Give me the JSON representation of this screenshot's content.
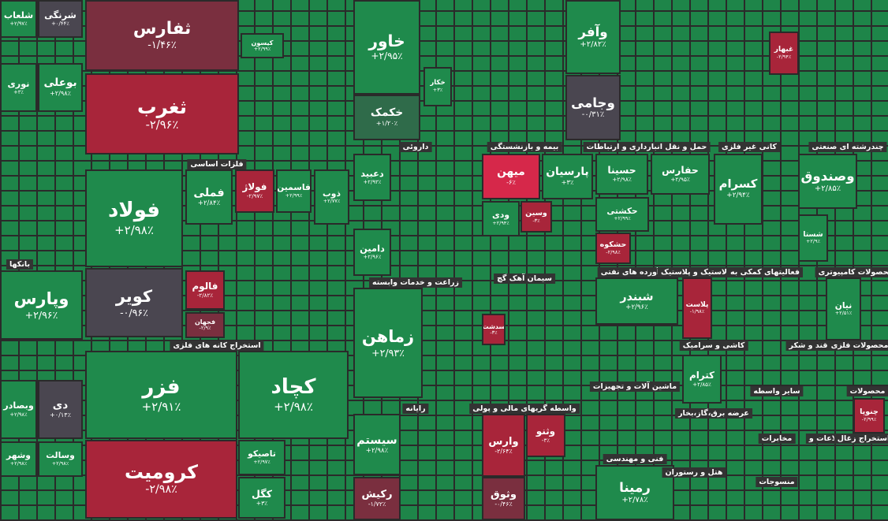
{
  "sectors": [
    "فلزات اساسی",
    "بانکها",
    "استخراج کانه های فلزی",
    "داروئی",
    "بیمه و بازنشستگی",
    "حمل و نقل انبارداری و ارتباطات",
    "کانی غیر فلزی",
    "چندرشته ای صنعتی",
    "زراعت و خدمات وابسته",
    "سیمان آهک گچ",
    "فرآورده های نفتی",
    "لاستیک و پلاستیک",
    "فعالیتهای کمکی به",
    "محصولات کامپیوتری",
    "کاشی و سرامیک",
    "قند و شکر",
    "محصولات فلزی",
    "ماشین آلات و تجهیزات",
    "رایانه",
    "واسطه گریهای مالی و پولی",
    "فنی و مهندسی",
    "عرضه برق،گاز،بخار",
    "سایر واسطه",
    "محصولات",
    "مخابرات",
    "اطلاعات و",
    "استخراج زغال",
    "هتل و رستوران",
    "منسوجات"
  ],
  "tiles": [
    {
      "name": "شلعاب",
      "change": "+۲/۹۷٪",
      "color": "#1f8a4c"
    },
    {
      "name": "شرنگی",
      "change": "+۰/۴۴٪",
      "color": "#4a4650"
    },
    {
      "name": "نوری",
      "change": "+۳٪",
      "color": "#1f8a4c"
    },
    {
      "name": "بوعلی",
      "change": "+۲/۹۸٪",
      "color": "#1f8a4c"
    },
    {
      "name": "وپارس",
      "change": "+۲/۹۶٪",
      "color": "#1f8a4c"
    },
    {
      "name": "وبصادر",
      "change": "+۲/۹۸٪",
      "color": "#1f8a4c"
    },
    {
      "name": "دی",
      "change": "+۰/۱۴٪",
      "color": "#4a4650"
    },
    {
      "name": "وشهر",
      "change": "+۲/۹۸٪",
      "color": "#1f8a4c"
    },
    {
      "name": "وسالت",
      "change": "+۲/۹۸٪",
      "color": "#1f8a4c"
    },
    {
      "name": "ثفارس",
      "change": "-۱/۴۶٪",
      "color": "#7a2f3f"
    },
    {
      "name": "ثغرب",
      "change": "-۲/۹۶٪",
      "color": "#a8253a"
    },
    {
      "name": "فولاد",
      "change": "+۲/۹۸٪",
      "color": "#1f8a4c"
    },
    {
      "name": "کویر",
      "change": "-۰/۹۶٪",
      "color": "#4a4650"
    },
    {
      "name": "فملی",
      "change": "+۲/۸۴٪",
      "color": "#1f8a4c"
    },
    {
      "name": "فولاژ",
      "change": "-۲/۹۷٪",
      "color": "#a8253a"
    },
    {
      "name": "فاسمین",
      "change": "+۲/۹۹٪",
      "color": "#1f8a4c"
    },
    {
      "name": "ذوب",
      "change": "+۲/۷۷٪",
      "color": "#1f8a4c"
    },
    {
      "name": "فالوم",
      "change": "-۲/۸۲٪",
      "color": "#a8253a"
    },
    {
      "name": "فجهان",
      "change": "-۲/۹٪",
      "color": "#7a2f3f"
    },
    {
      "name": "فزر",
      "change": "+۲/۹۱٪",
      "color": "#1f8a4c"
    },
    {
      "name": "کرومیت",
      "change": "-۲/۹۸٪",
      "color": "#a8253a"
    },
    {
      "name": "کچاد",
      "change": "+۲/۹۸٪",
      "color": "#1f8a4c"
    },
    {
      "name": "تاصیکو",
      "change": "+۲/۹۷٪",
      "color": "#1f8a4c"
    },
    {
      "name": "کگل",
      "change": "+۳٪",
      "color": "#1f8a4c"
    },
    {
      "name": "کیسون",
      "change": "+۲/۹۹٪",
      "color": "#1f8a4c"
    },
    {
      "name": "خاور",
      "change": "+۲/۹۵٪",
      "color": "#1f8a4c"
    },
    {
      "name": "خکمک",
      "change": "+۱/۲۰٪",
      "color": "#2f6b4a"
    },
    {
      "name": "خکار",
      "change": "+۳٪",
      "color": "#1f8a4c"
    },
    {
      "name": "وآفر",
      "change": "+۲/۸۲٪",
      "color": "#1f8a4c"
    },
    {
      "name": "وجامی",
      "change": "-۰/۳۱٪",
      "color": "#4a4650"
    },
    {
      "name": "میهن",
      "change": "-۶٪",
      "color": "#d6284a"
    },
    {
      "name": "پارسیان",
      "change": "+۳٪",
      "color": "#1f8a4c"
    },
    {
      "name": "ودی",
      "change": "+۲/۹۴٪",
      "color": "#1f8a4c"
    },
    {
      "name": "وسین",
      "change": "-۳٪",
      "color": "#a8253a"
    },
    {
      "name": "دعبید",
      "change": "+۲/۹۳٪",
      "color": "#1f8a4c"
    },
    {
      "name": "دامین",
      "change": "+۲/۹۶٪",
      "color": "#1f8a4c"
    },
    {
      "name": "زماهن",
      "change": "+۲/۹۳٪",
      "color": "#1f8a4c"
    },
    {
      "name": "سیستم",
      "change": "+۲/۹۸٪",
      "color": "#1f8a4c"
    },
    {
      "name": "رکیش",
      "change": "-۱/۷۲٪",
      "color": "#7a2f3f"
    },
    {
      "name": "وارس",
      "change": "-۲/۶۴٪",
      "color": "#a8253a"
    },
    {
      "name": "وثنو",
      "change": "-۳٪",
      "color": "#a8253a"
    },
    {
      "name": "وثوق",
      "change": "-۰/۴۶٪",
      "color": "#7a2f3f"
    },
    {
      "name": "شبندر",
      "change": "+۲/۹۶٪",
      "color": "#1f8a4c"
    },
    {
      "name": "پلاست",
      "change": "-۱/۹۸٪",
      "color": "#a8253a"
    },
    {
      "name": "رمینا",
      "change": "+۲/۷۸٪",
      "color": "#1f8a4c"
    },
    {
      "name": "کسرام",
      "change": "+۲/۹۴٪",
      "color": "#1f8a4c"
    },
    {
      "name": "وصندوق",
      "change": "+۲/۸۵٪",
      "color": "#1f8a4c"
    },
    {
      "name": "شستا",
      "change": "+۲/۹٪",
      "color": "#1f8a4c"
    },
    {
      "name": "نیان",
      "change": "+۲/۵۱٪",
      "color": "#1f8a4c"
    },
    {
      "name": "کترام",
      "change": "+۲/۸۵٪",
      "color": "#1f8a4c"
    },
    {
      "name": "حکشتی",
      "change": "+۲/۹۹٪",
      "color": "#1f8a4c"
    },
    {
      "name": "حشکوه",
      "change": "-۲/۹۸٪",
      "color": "#a8253a"
    },
    {
      "name": "حفارس",
      "change": "+۲/۹۵٪",
      "color": "#1f8a4c"
    },
    {
      "name": "حسینا",
      "change": "+۲/۹۸٪",
      "color": "#1f8a4c"
    },
    {
      "name": "چنوپا",
      "change": "-۲/۹۹٪",
      "color": "#a8253a"
    },
    {
      "name": "غبهار",
      "change": "-۲/۹۴٪",
      "color": "#a8253a"
    },
    {
      "name": "سدشت",
      "change": "-۳٪",
      "color": "#a8253a"
    }
  ]
}
